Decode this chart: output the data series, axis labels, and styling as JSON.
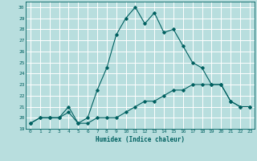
{
  "xlabel": "Humidex (Indice chaleur)",
  "background_color": "#b8dede",
  "grid_color": "#ffffff",
  "line_color": "#006060",
  "xlim": [
    -0.5,
    23.5
  ],
  "ylim": [
    19,
    30.5
  ],
  "xticks": [
    0,
    1,
    2,
    3,
    4,
    5,
    6,
    7,
    8,
    9,
    10,
    11,
    12,
    13,
    14,
    15,
    16,
    17,
    18,
    19,
    20,
    21,
    22,
    23
  ],
  "yticks": [
    19,
    20,
    21,
    22,
    23,
    24,
    25,
    26,
    27,
    28,
    29,
    30
  ],
  "series1_x": [
    0,
    1,
    2,
    3,
    4,
    5,
    6,
    7,
    8,
    9,
    10,
    11,
    12,
    13,
    14,
    15,
    16,
    17,
    18,
    19,
    20,
    21,
    22,
    23
  ],
  "series1_y": [
    19.5,
    20.0,
    20.0,
    20.0,
    20.5,
    19.5,
    19.5,
    20.0,
    20.0,
    20.0,
    20.5,
    21.0,
    21.5,
    21.5,
    22.0,
    22.5,
    22.5,
    23.0,
    23.0,
    23.0,
    23.0,
    21.5,
    21.0,
    21.0
  ],
  "series2_x": [
    0,
    1,
    2,
    3,
    4,
    5,
    6,
    7,
    8,
    9,
    10,
    11,
    12,
    13,
    14,
    15,
    16,
    17,
    18,
    19,
    20,
    21,
    22,
    23
  ],
  "series2_y": [
    19.5,
    20.0,
    20.0,
    20.0,
    21.0,
    19.5,
    20.0,
    22.5,
    24.5,
    27.5,
    29.0,
    30.0,
    28.5,
    29.5,
    27.7,
    28.0,
    26.5,
    25.0,
    24.5,
    23.0,
    23.0,
    21.5,
    21.0,
    21.0
  ]
}
